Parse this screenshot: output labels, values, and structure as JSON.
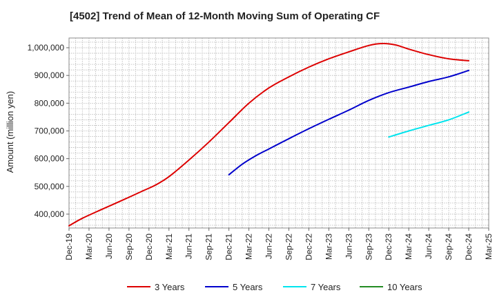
{
  "chart_data": {
    "type": "line",
    "title": "[4502]  Trend of Mean of 12-Month Moving Sum of Operating CF",
    "xlabel": "",
    "ylabel": "Amount (million yen)",
    "ylim": [
      350000,
      1035000
    ],
    "yticks": [
      400000,
      500000,
      600000,
      700000,
      800000,
      900000,
      1000000
    ],
    "ytick_labels": [
      "400,000",
      "500,000",
      "600,000",
      "700,000",
      "800,000",
      "900,000",
      "1,000,000"
    ],
    "x_range_months": [
      0,
      63
    ],
    "xticks": [
      0,
      3,
      6,
      9,
      12,
      15,
      18,
      21,
      24,
      27,
      30,
      33,
      36,
      39,
      42,
      45,
      48,
      51,
      54,
      57,
      60,
      63
    ],
    "xtick_labels": [
      "Dec-19",
      "Mar-20",
      "Jun-20",
      "Sep-20",
      "Dec-20",
      "Mar-21",
      "Jun-21",
      "Sep-21",
      "Dec-21",
      "Mar-22",
      "Jun-22",
      "Sep-22",
      "Dec-22",
      "Mar-23",
      "Jun-23",
      "Sep-23",
      "Dec-23",
      "Mar-24",
      "Jun-24",
      "Sep-24",
      "Dec-24",
      "Mar-25"
    ],
    "grid": true,
    "legend_position": "bottom",
    "series": [
      {
        "name": "3 Years",
        "color": "#dd0000",
        "x": [
          0,
          2,
          5,
          8,
          11,
          13,
          15,
          18,
          21,
          24,
          27,
          30,
          33,
          36,
          39,
          42,
          45,
          47,
          49,
          51,
          54,
          57,
          60
        ],
        "values": [
          358000,
          385000,
          418000,
          450000,
          483000,
          505000,
          535000,
          595000,
          660000,
          730000,
          800000,
          855000,
          895000,
          930000,
          960000,
          985000,
          1008000,
          1015000,
          1010000,
          995000,
          975000,
          960000,
          953000
        ]
      },
      {
        "name": "5 Years",
        "color": "#0000cc",
        "x": [
          24,
          26,
          28,
          30,
          33,
          36,
          39,
          42,
          45,
          48,
          51,
          54,
          57,
          60
        ],
        "values": [
          542000,
          580000,
          610000,
          635000,
          672000,
          708000,
          742000,
          775000,
          810000,
          838000,
          858000,
          878000,
          895000,
          918000
        ]
      },
      {
        "name": "7 Years",
        "color": "#00e5ee",
        "x": [
          48,
          51,
          54,
          57,
          60
        ],
        "values": [
          678000,
          700000,
          720000,
          740000,
          768000
        ]
      },
      {
        "name": "10 Years",
        "color": "#228B22",
        "x": [],
        "values": []
      }
    ]
  }
}
